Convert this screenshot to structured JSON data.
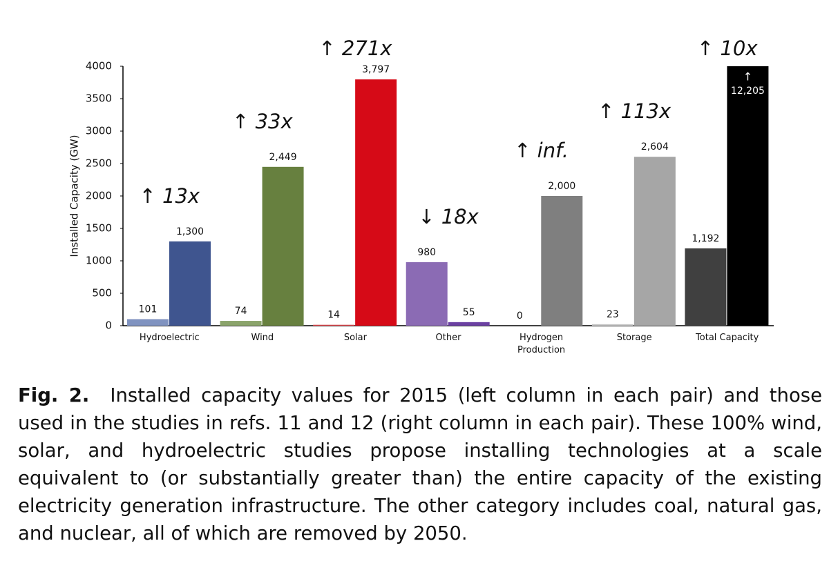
{
  "chart_data": {
    "type": "bar",
    "y_label": "Installed Capacity (GW)",
    "categories": [
      "Hydroelectric",
      "Wind",
      "Solar",
      "Other",
      "Hydrogen\nProduction",
      "Storage",
      "Total Capacity"
    ],
    "series": [
      {
        "values": [
          101,
          74,
          14,
          980,
          0,
          23,
          1192
        ],
        "value_labels": [
          "101",
          "74",
          "14",
          "980",
          "0",
          "23",
          "1,192"
        ],
        "colors": [
          "#8093c0",
          "#8ba46b",
          "#e04a4f",
          "#8b6bb4",
          "#9a9a9a",
          "#c8c8c8",
          "#404040"
        ]
      },
      {
        "values": [
          1300,
          2449,
          3797,
          55,
          2000,
          2604,
          12205
        ],
        "value_labels": [
          "1,300",
          "2,449",
          "3,797",
          "55",
          "2,000",
          "2,604",
          "12,205"
        ],
        "colors": [
          "#3f558f",
          "#67803f",
          "#d60a17",
          "#6b40a2",
          "#7f7f7f",
          "#a6a6a6",
          "#000000"
        ]
      }
    ],
    "annotations": [
      "↑ 13x",
      "↑ 33x",
      "↑ 271x",
      "↓ 18x",
      "↑ inf.",
      "↑ 113x",
      "↑ 10x"
    ],
    "overflow_marker": "↑",
    "ylim": [
      0,
      4000
    ],
    "yticks": [
      0,
      500,
      1000,
      1500,
      2000,
      2500,
      3000,
      3500,
      4000
    ],
    "grid": false
  },
  "caption": {
    "label": "Fig. 2.",
    "text": "Installed capacity values for 2015 (left column in each pair) and those used in the studies in refs. 11 and 12 (right column in each pair). These 100% wind, solar, and hydroelectric studies propose installing technologies at a scale equivalent to (or substantially greater than) the entire capacity of the existing electricity generation infrastructure. The other category includes coal, natural gas, and nuclear, all of which are removed by 2050."
  }
}
